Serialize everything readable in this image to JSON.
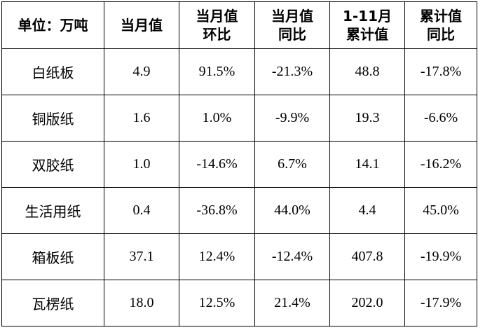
{
  "table": {
    "header": [
      [
        "单位：万吨"
      ],
      [
        "当月值"
      ],
      [
        "当月值",
        "环比"
      ],
      [
        "当月值",
        "同比"
      ],
      [
        "1-11月",
        "累计值"
      ],
      [
        "累计值",
        "同比"
      ]
    ],
    "rows": [
      [
        "白纸板",
        "4.9",
        "91.5%",
        "-21.3%",
        "48.8",
        "-17.8%"
      ],
      [
        "铜版纸",
        "1.6",
        "1.0%",
        "-9.9%",
        "19.3",
        "-6.6%"
      ],
      [
        "双胶纸",
        "1.0",
        "-14.6%",
        "6.7%",
        "14.1",
        "-16.2%"
      ],
      [
        "生活用纸",
        "0.4",
        "-36.8%",
        "44.0%",
        "4.4",
        "45.0%"
      ],
      [
        "箱板纸",
        "37.1",
        "12.4%",
        "-12.4%",
        "407.8",
        "-19.9%"
      ],
      [
        "瓦楞纸",
        "18.0",
        "12.5%",
        "21.4%",
        "202.0",
        "-17.9%"
      ]
    ]
  }
}
